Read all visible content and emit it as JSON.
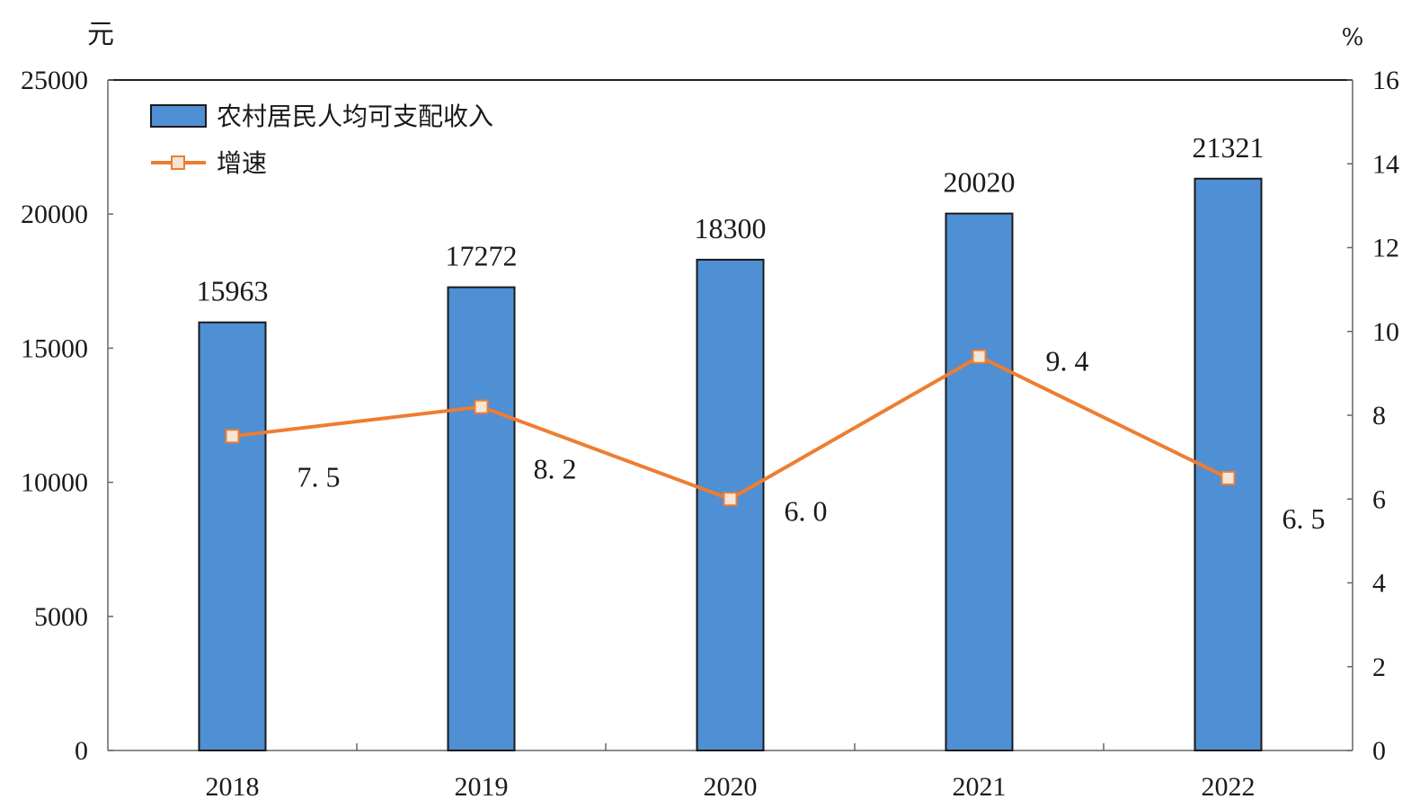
{
  "chart_data": {
    "type": "bar",
    "categories": [
      "2018",
      "2019",
      "2020",
      "2021",
      "2022"
    ],
    "series": [
      {
        "name": "农村居民人均可支配收入",
        "type": "bar",
        "axis": "left",
        "values": [
          15963,
          17272,
          18300,
          20020,
          21321
        ],
        "labels": [
          "15963",
          "17272",
          "18300",
          "20020",
          "21321"
        ],
        "color": "#4f8fd4"
      },
      {
        "name": "增速",
        "type": "line",
        "axis": "right",
        "values": [
          7.5,
          8.2,
          6.0,
          9.4,
          6.5
        ],
        "labels": [
          "7. 5",
          "8. 2",
          "6. 0",
          "9. 4",
          "6. 5"
        ],
        "color": "#ee7d31"
      }
    ],
    "y_left": {
      "unit": "元",
      "range": [
        0,
        25000
      ],
      "ticks": [
        "0",
        "5000",
        "10000",
        "15000",
        "20000",
        "25000"
      ]
    },
    "y_right": {
      "unit": "%",
      "range": [
        0,
        16
      ],
      "ticks": [
        "0",
        "2",
        "4",
        "6",
        "8",
        "10",
        "12",
        "14",
        "16"
      ]
    },
    "grid": false,
    "legend_position": "top-left"
  }
}
